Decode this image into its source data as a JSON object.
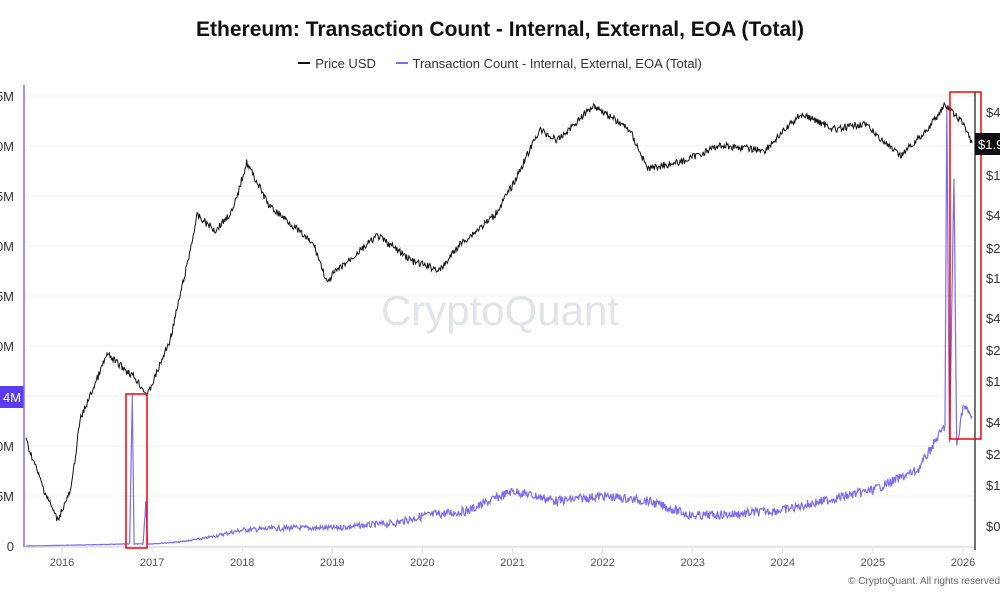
{
  "chart_data": {
    "type": "line",
    "title": "Ethereum: Transaction Count - Internal, External, EOA (Total)",
    "legend": {
      "placement": "top-center",
      "entries": [
        "Price USD",
        "Transaction Count - Internal, External, EOA (Total)"
      ]
    },
    "x_ticks": [
      "2016",
      "2017",
      "2018",
      "2019",
      "2020",
      "2021",
      "2022",
      "2023",
      "2024",
      "2025",
      "2026"
    ],
    "left_axis": {
      "ticks_visible": [
        "5M",
        "0M",
        "5M",
        "0M",
        "5M",
        "0M",
        "0M",
        "5M",
        "0"
      ],
      "highlight_label": "4M",
      "scale": "linear",
      "range_millions": [
        0,
        45
      ]
    },
    "right_axis": {
      "ticks_visible": [
        "$4",
        "$1",
        "$4",
        "$2",
        "$1",
        "$4",
        "$2",
        "$1",
        "$4",
        "$2",
        "$1",
        "$0"
      ],
      "price_tag": "$1.9",
      "scale": "log"
    },
    "grid": true,
    "colors": {
      "price": "#111111",
      "count": "#7b6cf0",
      "highlight": "#ff0000",
      "axis_tag": "#5b3cf0"
    },
    "series": [
      {
        "name": "Price USD",
        "axis": "right",
        "points": [
          [
            2015.6,
            2.7
          ],
          [
            2015.8,
            0.9
          ],
          [
            2015.95,
            0.46
          ],
          [
            2016.1,
            0.9
          ],
          [
            2016.2,
            4.2
          ],
          [
            2016.4,
            11
          ],
          [
            2016.5,
            18
          ],
          [
            2016.8,
            11
          ],
          [
            2016.95,
            7.3
          ],
          [
            2017.2,
            25
          ],
          [
            2017.4,
            145
          ],
          [
            2017.5,
            390
          ],
          [
            2017.7,
            280
          ],
          [
            2017.9,
            440
          ],
          [
            2018.05,
            1270
          ],
          [
            2018.3,
            480
          ],
          [
            2018.5,
            350
          ],
          [
            2018.8,
            200
          ],
          [
            2018.95,
            85
          ],
          [
            2019.0,
            105
          ],
          [
            2019.5,
            250
          ],
          [
            2019.9,
            140
          ],
          [
            2020.2,
            116
          ],
          [
            2020.4,
            200
          ],
          [
            2020.8,
            390
          ],
          [
            2021.0,
            760
          ],
          [
            2021.3,
            2600
          ],
          [
            2021.5,
            2050
          ],
          [
            2021.9,
            4500
          ],
          [
            2022.3,
            2600
          ],
          [
            2022.5,
            1100
          ],
          [
            2022.9,
            1300
          ],
          [
            2023.3,
            1850
          ],
          [
            2023.8,
            1650
          ],
          [
            2024.2,
            3700
          ],
          [
            2024.6,
            2600
          ],
          [
            2024.9,
            3000
          ],
          [
            2025.3,
            1450
          ],
          [
            2025.6,
            2600
          ],
          [
            2025.8,
            4500
          ],
          [
            2026.0,
            3000
          ],
          [
            2026.1,
            1950
          ]
        ]
      },
      {
        "name": "Transaction Count - Internal, External, EOA (Total)",
        "axis": "left",
        "points": [
          [
            2015.6,
            0
          ],
          [
            2016.75,
            0.2
          ],
          [
            2016.78,
            15
          ],
          [
            2016.8,
            0.2
          ],
          [
            2016.9,
            0.2
          ],
          [
            2016.93,
            4.5
          ],
          [
            2016.95,
            0.2
          ],
          [
            2017.3,
            0.4
          ],
          [
            2017.6,
            0.8
          ],
          [
            2018.0,
            1.6
          ],
          [
            2018.5,
            1.8
          ],
          [
            2019.0,
            1.8
          ],
          [
            2019.7,
            2.3
          ],
          [
            2020.0,
            3
          ],
          [
            2020.5,
            3.5
          ],
          [
            2021.0,
            5.5
          ],
          [
            2021.5,
            4.5
          ],
          [
            2022.0,
            5
          ],
          [
            2022.5,
            4.5
          ],
          [
            2023.0,
            3
          ],
          [
            2023.5,
            3.2
          ],
          [
            2024.0,
            3.6
          ],
          [
            2024.5,
            4.6
          ],
          [
            2025.0,
            5.6
          ],
          [
            2025.5,
            7.6
          ],
          [
            2025.7,
            10.6
          ],
          [
            2025.8,
            12
          ],
          [
            2025.82,
            44
          ],
          [
            2025.85,
            10
          ],
          [
            2025.9,
            37
          ],
          [
            2025.93,
            10
          ],
          [
            2026.0,
            14
          ],
          [
            2026.1,
            13
          ]
        ]
      }
    ],
    "annotations": [
      "highlight-box-2016",
      "highlight-box-2025"
    ]
  },
  "watermark": "CryptoQuant",
  "copyright": "© CryptoQuant. All rights reserved"
}
